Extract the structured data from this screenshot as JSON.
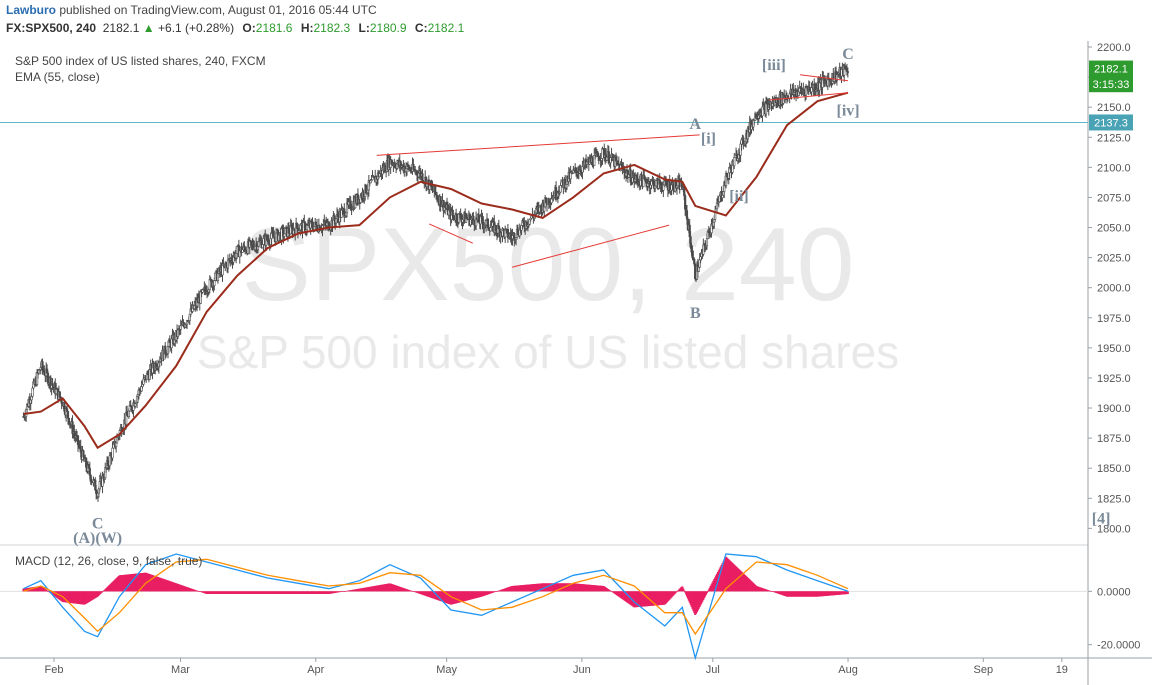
{
  "header": {
    "author": "Lawburo",
    "published_text": " published on TradingView.com, August 01, 2016 05:44 UTC",
    "symbol": "FX:SPX500, 240",
    "last": "2182.1",
    "change_arrow": "▲",
    "change": "+6.1 (+0.28%)",
    "o_label": "O:",
    "o_value": "2181.6",
    "h_label": "H:",
    "h_value": "2182.3",
    "l_label": "L:",
    "l_value": "2180.9",
    "c_label": "C:",
    "c_value": "2182.1"
  },
  "legend": {
    "main_title": "S&P 500 index of US listed shares, 240, FXCM",
    "ema": "EMA (55, close)",
    "macd": "MACD (12, 26, close, 9, false, true)"
  },
  "watermark": {
    "line1": "SPX500, 240",
    "line2": "S&P 500 index of US listed shares"
  },
  "price_badges": {
    "last_price": "2182.1",
    "countdown": "3:15:33",
    "hline_price": "2137.3"
  },
  "wave_labels": [
    "[iii]",
    "C",
    "A",
    "[i]",
    "[iv]",
    "[ii]",
    "B",
    "C",
    "(A)(W)",
    "[4]"
  ],
  "colors": {
    "candle_up": "#4a4a4a",
    "candle_down": "#4a4a4a",
    "ema": "#9b2c1c",
    "trendline": "#e53935",
    "hline": "#5cb8c8",
    "macd_line": "#2196f3",
    "signal_line": "#ff8f00",
    "histogram": "#e91e63",
    "wave_label": "#7a8a99",
    "last_badge": "#2e9b2e",
    "hline_badge": "#4aa3b5"
  },
  "chart_data": [
    {
      "type": "candlestick",
      "title": "S&P 500 index of US listed shares, 240, FXCM",
      "timeframe": "240",
      "x_tick_labels": [
        "Feb",
        "Mar",
        "Apr",
        "May",
        "Jun",
        "Jul",
        "Aug",
        "Sep",
        "19"
      ],
      "y_tick_labels": [
        "1800.0",
        "1825.0",
        "1850.0",
        "1875.0",
        "1900.0",
        "1925.0",
        "1950.0",
        "1975.0",
        "2000.0",
        "2025.0",
        "2050.0",
        "2075.0",
        "2100.0",
        "2125.0",
        "2150.0",
        "2175.0",
        "2200.0"
      ],
      "ylim": [
        1787,
        2205
      ],
      "horizontal_line": 2137.3,
      "series": [
        {
          "name": "EMA (55, close)",
          "x": [
            "2016-01-25",
            "2016-01-29",
            "2016-02-03",
            "2016-02-08",
            "2016-02-11",
            "2016-02-16",
            "2016-02-22",
            "2016-02-29",
            "2016-03-07",
            "2016-03-14",
            "2016-03-21",
            "2016-03-28",
            "2016-04-04",
            "2016-04-11",
            "2016-04-18",
            "2016-04-25",
            "2016-05-02",
            "2016-05-09",
            "2016-05-16",
            "2016-05-23",
            "2016-05-30",
            "2016-06-06",
            "2016-06-13",
            "2016-06-20",
            "2016-06-24",
            "2016-06-27",
            "2016-07-04",
            "2016-07-11",
            "2016-07-18",
            "2016-07-25",
            "2016-08-01"
          ],
          "values": [
            1895,
            1897,
            1908,
            1885,
            1867,
            1878,
            1902,
            1935,
            1980,
            2010,
            2033,
            2045,
            2050,
            2052,
            2075,
            2088,
            2082,
            2070,
            2065,
            2058,
            2075,
            2095,
            2102,
            2090,
            2088,
            2068,
            2060,
            2092,
            2135,
            2155,
            2162
          ]
        },
        {
          "name": "Close",
          "x": [
            "2016-01-25",
            "2016-01-29",
            "2016-02-03",
            "2016-02-08",
            "2016-02-11",
            "2016-02-16",
            "2016-02-22",
            "2016-02-29",
            "2016-03-07",
            "2016-03-14",
            "2016-03-21",
            "2016-03-28",
            "2016-04-04",
            "2016-04-11",
            "2016-04-18",
            "2016-04-25",
            "2016-05-02",
            "2016-05-09",
            "2016-05-16",
            "2016-05-23",
            "2016-05-30",
            "2016-06-06",
            "2016-06-13",
            "2016-06-20",
            "2016-06-24",
            "2016-06-27",
            "2016-07-04",
            "2016-07-11",
            "2016-07-18",
            "2016-07-25",
            "2016-08-01"
          ],
          "values": [
            1893,
            1935,
            1905,
            1855,
            1830,
            1880,
            1925,
            1960,
            2000,
            2030,
            2040,
            2050,
            2052,
            2075,
            2105,
            2095,
            2060,
            2055,
            2042,
            2068,
            2095,
            2112,
            2090,
            2085,
            2085,
            2010,
            2090,
            2145,
            2160,
            2168,
            2182
          ]
        }
      ],
      "trendlines": [
        {
          "x": [
            "2016-04-15",
            "2016-06-28"
          ],
          "y": [
            2110,
            2127
          ]
        },
        {
          "x": [
            "2016-05-16",
            "2016-06-21"
          ],
          "y": [
            2017,
            2052
          ]
        },
        {
          "x": [
            "2016-04-27",
            "2016-05-07"
          ],
          "y": [
            2053,
            2037
          ]
        },
        {
          "x": [
            "2016-07-14",
            "2016-08-01"
          ],
          "y": [
            2156,
            2162
          ]
        },
        {
          "x": [
            "2016-07-21",
            "2016-08-01"
          ],
          "y": [
            2177,
            2172
          ]
        }
      ],
      "annotations": [
        {
          "text": "[iii]",
          "x": "2016-07-15",
          "y": 2181
        },
        {
          "text": "C",
          "x": "2016-08-01",
          "y": 2190
        },
        {
          "text": "A",
          "x": "2016-06-27",
          "y": 2132
        },
        {
          "text": "[i]",
          "x": "2016-06-30",
          "y": 2120
        },
        {
          "text": "[iv]",
          "x": "2016-08-01",
          "y": 2143
        },
        {
          "text": "[ii]",
          "x": "2016-07-07",
          "y": 2072
        },
        {
          "text": "B",
          "x": "2016-06-27",
          "y": 1975
        },
        {
          "text": "C",
          "x": "2016-02-11",
          "y": 1800
        },
        {
          "text": "(A)(W)",
          "x": "2016-02-11",
          "y": 1788
        },
        {
          "text": "[4]",
          "x": "2016-09-28",
          "y": 1804
        }
      ]
    },
    {
      "type": "line",
      "title": "MACD (12, 26, close, 9, false, true)",
      "y_tick_labels": [
        "0.0000",
        "-20.0000"
      ],
      "ylim": [
        -25,
        17
      ],
      "series": [
        {
          "name": "MACD",
          "x": [
            "2016-01-25",
            "2016-01-29",
            "2016-02-03",
            "2016-02-08",
            "2016-02-11",
            "2016-02-16",
            "2016-02-22",
            "2016-02-29",
            "2016-03-07",
            "2016-03-14",
            "2016-03-21",
            "2016-03-28",
            "2016-04-04",
            "2016-04-11",
            "2016-04-18",
            "2016-04-25",
            "2016-05-02",
            "2016-05-09",
            "2016-05-16",
            "2016-05-23",
            "2016-05-30",
            "2016-06-06",
            "2016-06-13",
            "2016-06-20",
            "2016-06-24",
            "2016-06-27",
            "2016-07-04",
            "2016-07-11",
            "2016-07-18",
            "2016-07-25",
            "2016-08-01"
          ],
          "values": [
            1,
            4,
            -6,
            -15,
            -17,
            -2,
            10,
            14,
            11,
            8,
            5,
            3,
            1,
            4,
            10,
            5,
            -7,
            -9,
            -4,
            1,
            6,
            8,
            -4,
            -13,
            -6,
            -25,
            14,
            13,
            8,
            4,
            0
          ]
        },
        {
          "name": "Signal",
          "x": [
            "2016-01-25",
            "2016-01-29",
            "2016-02-03",
            "2016-02-08",
            "2016-02-11",
            "2016-02-16",
            "2016-02-22",
            "2016-02-29",
            "2016-03-07",
            "2016-03-14",
            "2016-03-21",
            "2016-03-28",
            "2016-04-04",
            "2016-04-11",
            "2016-04-18",
            "2016-04-25",
            "2016-05-02",
            "2016-05-09",
            "2016-05-16",
            "2016-05-23",
            "2016-05-30",
            "2016-06-06",
            "2016-06-13",
            "2016-06-20",
            "2016-06-24",
            "2016-06-27",
            "2016-07-04",
            "2016-07-11",
            "2016-07-18",
            "2016-07-25",
            "2016-08-01"
          ],
          "values": [
            0,
            2,
            -2,
            -10,
            -15,
            -8,
            3,
            11,
            12,
            9,
            6,
            4,
            2,
            3,
            7,
            6,
            -2,
            -7,
            -6,
            -2,
            3,
            6,
            2,
            -8,
            -8,
            -16,
            1,
            11,
            10,
            6,
            1
          ]
        },
        {
          "name": "Histogram",
          "x": [
            "2016-01-25",
            "2016-01-29",
            "2016-02-03",
            "2016-02-08",
            "2016-02-11",
            "2016-02-16",
            "2016-02-22",
            "2016-02-29",
            "2016-03-07",
            "2016-03-14",
            "2016-03-21",
            "2016-03-28",
            "2016-04-04",
            "2016-04-11",
            "2016-04-18",
            "2016-04-25",
            "2016-05-02",
            "2016-05-09",
            "2016-05-16",
            "2016-05-23",
            "2016-05-30",
            "2016-06-06",
            "2016-06-13",
            "2016-06-20",
            "2016-06-24",
            "2016-06-27",
            "2016-07-04",
            "2016-07-11",
            "2016-07-18",
            "2016-07-25",
            "2016-08-01"
          ],
          "values": [
            1,
            2,
            -4,
            -5,
            -2,
            6,
            7,
            3,
            -1,
            -1,
            -1,
            -1,
            -1,
            1,
            3,
            -1,
            -5,
            -2,
            2,
            3,
            3,
            2,
            -6,
            -5,
            2,
            -9,
            13,
            2,
            -2,
            -2,
            -1
          ]
        }
      ]
    }
  ]
}
